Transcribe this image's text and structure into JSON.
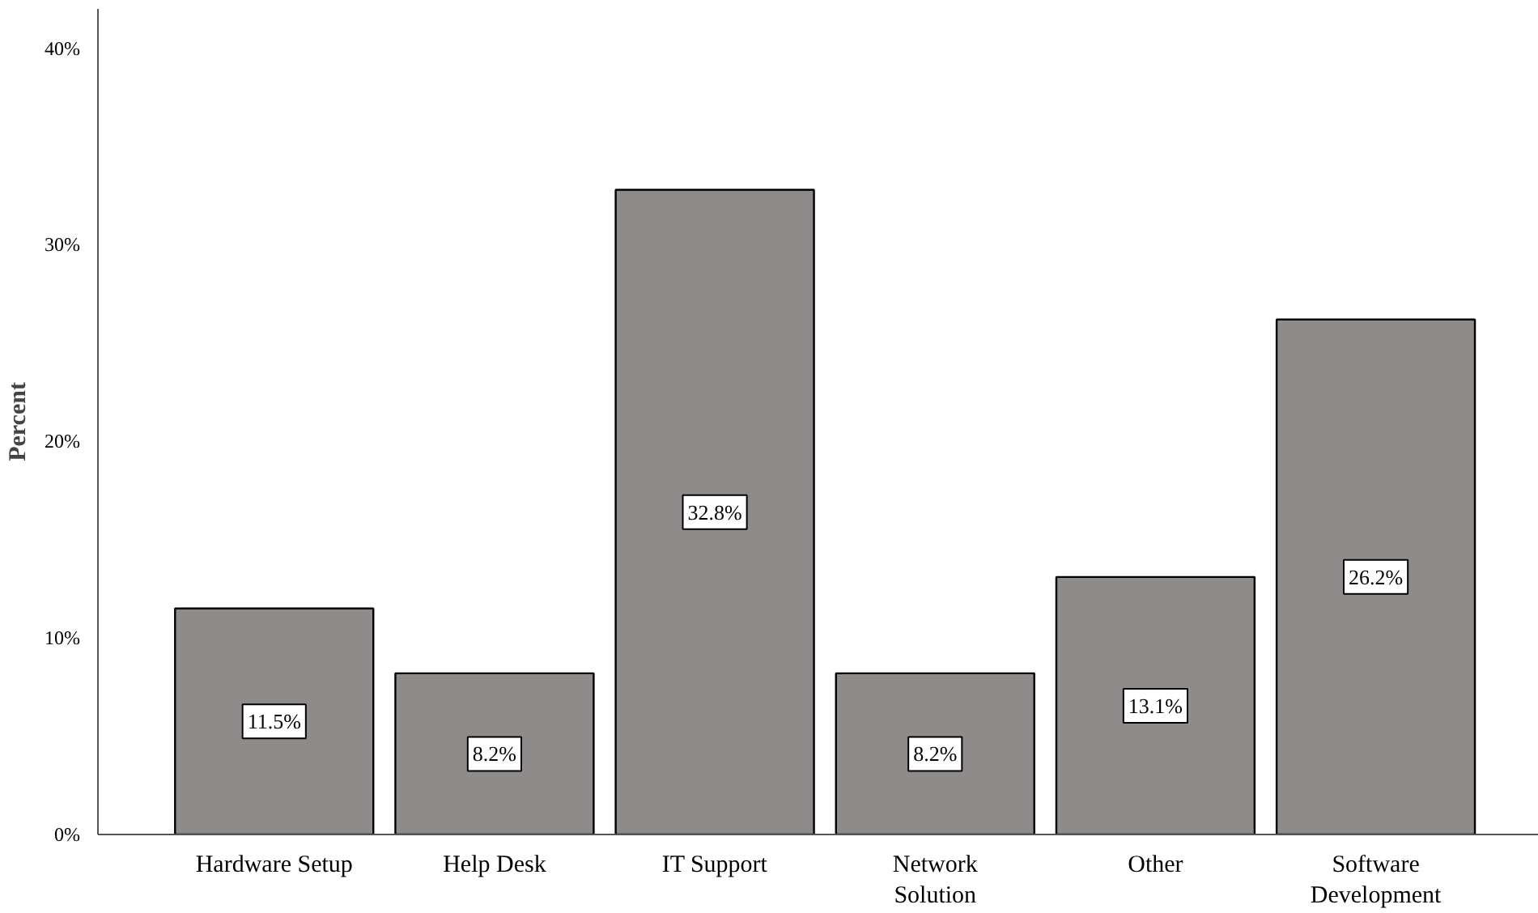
{
  "chart_data": {
    "type": "bar",
    "ylabel": "Percent",
    "categories": [
      "Hardware Setup",
      "Help Desk",
      "IT Support",
      "Network\nSolution",
      "Other",
      "Software\nDevelopment"
    ],
    "values": [
      11.5,
      8.2,
      32.8,
      8.2,
      13.1,
      26.2
    ],
    "value_labels": [
      "11.5%",
      "8.2%",
      "32.8%",
      "8.2%",
      "13.1%",
      "26.2%"
    ],
    "color": "#8f8b8b",
    "ylim": [
      0,
      42
    ],
    "yticks": [
      {
        "value": 0,
        "label": "0%"
      },
      {
        "value": 10,
        "label": "10%"
      },
      {
        "value": 20,
        "label": "20%"
      },
      {
        "value": 30,
        "label": "30%"
      },
      {
        "value": 40,
        "label": "40%"
      }
    ],
    "grid": false
  }
}
